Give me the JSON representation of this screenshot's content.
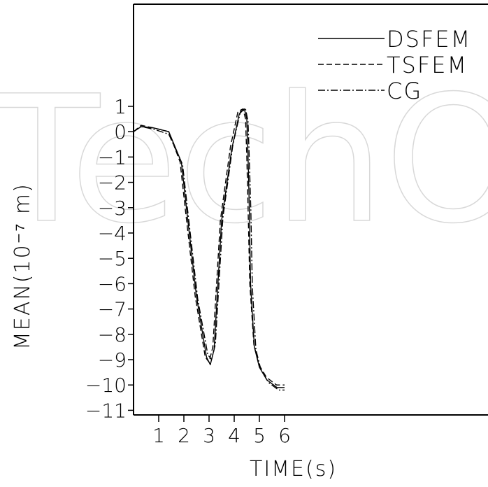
{
  "chart_data": {
    "type": "line",
    "xlabel": "TIME(s)",
    "ylabel": "MEAN(10⁻⁷ m)",
    "xlim": [
      0,
      6
    ],
    "ylim": [
      -11,
      1
    ],
    "x_ticks": [
      1,
      2,
      3,
      4,
      5,
      6
    ],
    "y_ticks": [
      1,
      0,
      -1,
      -2,
      -3,
      -4,
      -5,
      -6,
      -7,
      -8,
      -9,
      -10,
      -11
    ],
    "legend_position": "top-right",
    "grid": false,
    "watermark": "TechOpen",
    "series": [
      {
        "name": "DSFEM",
        "style": "solid",
        "x": [
          0.0,
          0.3,
          0.8,
          1.4,
          1.9,
          2.1,
          2.5,
          2.9,
          3.05,
          3.2,
          3.5,
          3.9,
          4.2,
          4.4,
          4.5,
          4.55,
          4.6,
          4.65,
          4.8,
          5.0,
          5.3,
          5.7,
          6.0
        ],
        "y": [
          0.0,
          0.2,
          0.15,
          0.0,
          -1.2,
          -3.0,
          -6.5,
          -8.9,
          -9.2,
          -8.6,
          -3.5,
          -0.7,
          0.7,
          0.9,
          0.5,
          -1.0,
          -3.0,
          -6.0,
          -8.5,
          -9.3,
          -9.8,
          -10.1,
          -10.1
        ]
      },
      {
        "name": "TSFEM",
        "style": "dashed",
        "x": [
          0.0,
          0.3,
          0.8,
          1.4,
          1.85,
          2.05,
          2.45,
          2.85,
          3.0,
          3.15,
          3.45,
          3.85,
          4.15,
          4.35,
          4.45,
          4.5,
          4.55,
          4.62,
          4.78,
          4.98,
          5.28,
          5.68,
          6.0
        ],
        "y": [
          0.0,
          0.25,
          0.15,
          0.0,
          -1.2,
          -3.0,
          -6.5,
          -8.9,
          -9.1,
          -8.5,
          -3.5,
          -0.6,
          0.8,
          0.9,
          0.5,
          -1.0,
          -3.0,
          -6.0,
          -8.4,
          -9.2,
          -9.7,
          -10.0,
          -10.0
        ]
      },
      {
        "name": "CG",
        "style": "dash-dot",
        "x": [
          0.0,
          0.3,
          0.8,
          1.4,
          1.95,
          2.15,
          2.55,
          2.95,
          3.1,
          3.25,
          3.55,
          3.95,
          4.25,
          4.45,
          4.55,
          4.6,
          4.66,
          4.72,
          4.86,
          5.06,
          5.36,
          5.76,
          6.0
        ],
        "y": [
          0.0,
          0.2,
          0.1,
          -0.1,
          -1.3,
          -3.1,
          -6.6,
          -8.8,
          -9.0,
          -8.4,
          -3.4,
          -0.5,
          0.8,
          0.9,
          0.4,
          -1.1,
          -3.1,
          -6.1,
          -8.6,
          -9.4,
          -9.9,
          -10.2,
          -10.2
        ]
      }
    ]
  }
}
